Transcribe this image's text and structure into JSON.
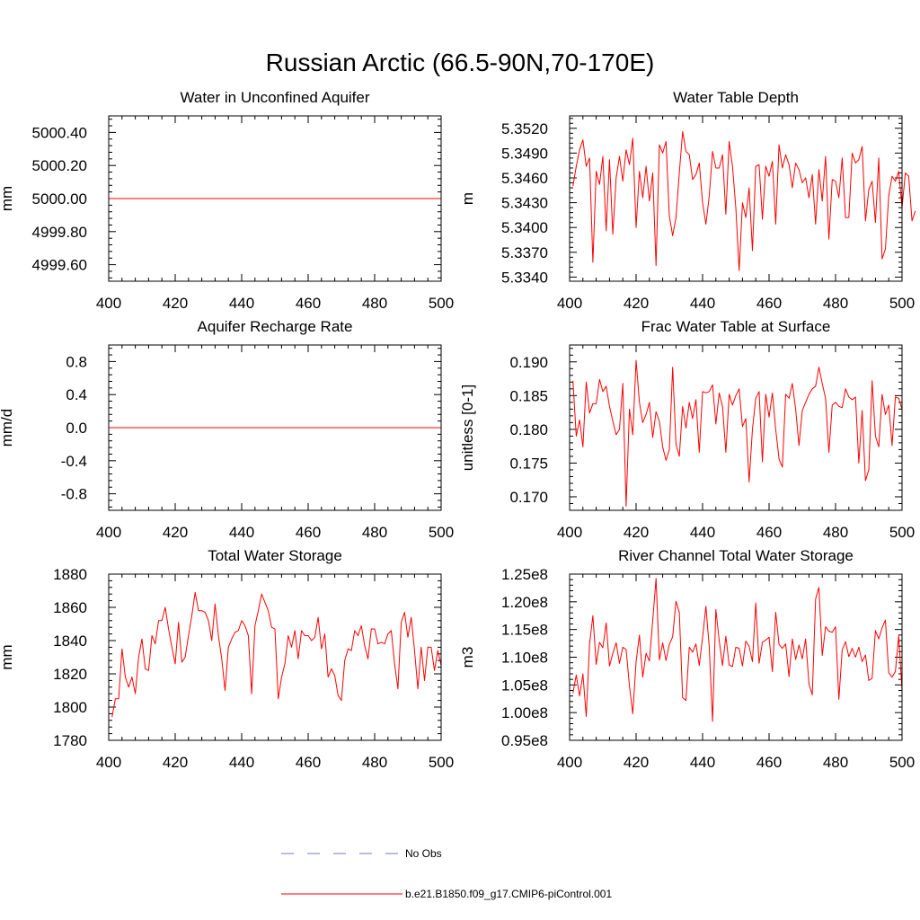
{
  "figure": {
    "title": "Russian Arctic (66.5-90N,70-170E)"
  },
  "legend": {
    "items": [
      {
        "label": "No Obs",
        "color": "#7777cc",
        "style": "dashed"
      },
      {
        "label": "b.e21.B1850.f09_g17.CMIP6-piControl.001",
        "color": "#ff0000",
        "style": "solid"
      }
    ]
  },
  "chart_data": [
    {
      "type": "line",
      "title": "Water in Unconfined Aquifer",
      "xlabel": "",
      "ylabel": "mm",
      "xlim": [
        400,
        500
      ],
      "ylim": [
        4999.5,
        5000.5
      ],
      "xticks": [
        400,
        420,
        440,
        460,
        480,
        500
      ],
      "xticklabels": [
        "400",
        "420",
        "440",
        "460",
        "480",
        "500"
      ],
      "yticks": [
        4999.6,
        4999.8,
        5000.0,
        5000.2,
        5000.4
      ],
      "yticklabels": [
        "4999.60",
        "4999.80",
        "5000.00",
        "5000.20",
        "5000.40"
      ],
      "x_start": 400,
      "x_step": 1,
      "series": [
        {
          "name": "b.e21.B1850.f09_g17.CMIP6-piControl.001",
          "color": "#ff0000",
          "values": [
            5000.0,
            5000.0
          ]
        }
      ],
      "series_x": [
        400,
        500
      ]
    },
    {
      "type": "line",
      "title": "Water Table Depth",
      "xlabel": "",
      "ylabel": "m",
      "xlim": [
        400,
        500
      ],
      "ylim": [
        5.3335,
        5.3535
      ],
      "xticks": [
        400,
        420,
        440,
        460,
        480,
        500
      ],
      "xticklabels": [
        "400",
        "420",
        "440",
        "460",
        "480",
        "500"
      ],
      "yticks": [
        5.334,
        5.337,
        5.34,
        5.343,
        5.346,
        5.349,
        5.352
      ],
      "yticklabels": [
        "5.3340",
        "5.3370",
        "5.3400",
        "5.3430",
        "5.3460",
        "5.3490",
        "5.3520"
      ],
      "x_start": 401,
      "x_step": 1,
      "series": [
        {
          "name": "b.e21.B1850.f09_g17.CMIP6-piControl.001",
          "color": "#ff0000",
          "values": [
            5.345,
            5.3474,
            5.3494,
            5.3506,
            5.3474,
            5.3484,
            5.3358,
            5.3468,
            5.3452,
            5.3486,
            5.3396,
            5.3482,
            5.3392,
            5.346,
            5.3486,
            5.3456,
            5.3494,
            5.3476,
            5.3508,
            5.34,
            5.3468,
            5.3436,
            5.3474,
            5.3432,
            5.3466,
            5.3354,
            5.35,
            5.349,
            5.3504,
            5.3414,
            5.339,
            5.3412,
            5.3466,
            5.3516,
            5.3492,
            5.3488,
            5.3458,
            5.3464,
            5.3478,
            5.343,
            5.3404,
            5.3438,
            5.3492,
            5.3472,
            5.3472,
            5.3488,
            5.3416,
            5.3504,
            5.3474,
            5.3424,
            5.3348,
            5.343,
            5.3412,
            5.3448,
            5.3372,
            5.3474,
            5.3476,
            5.341,
            5.3474,
            5.3462,
            5.348,
            5.3404,
            5.35,
            5.3472,
            5.3488,
            5.3476,
            5.3448,
            5.3478,
            5.347,
            5.3454,
            5.346,
            5.3436,
            5.3464,
            5.3404,
            5.347,
            5.3432,
            5.3486,
            5.3386,
            5.3458,
            5.3456,
            5.3436,
            5.3484,
            5.3412,
            5.3412,
            5.349,
            5.3478,
            5.3482,
            5.3498,
            5.3408,
            5.3446,
            5.3456,
            5.3406,
            5.3484,
            5.3362,
            5.3374,
            5.3438,
            5.3462,
            5.3456,
            5.3468,
            5.3424,
            5.3466,
            5.3462,
            5.3408,
            5.342
          ]
        }
      ]
    },
    {
      "type": "line",
      "title": "Aquifer Recharge Rate",
      "xlabel": "",
      "ylabel": "mm/d",
      "xlim": [
        400,
        500
      ],
      "ylim": [
        -1.0,
        1.0
      ],
      "xticks": [
        400,
        420,
        440,
        460,
        480,
        500
      ],
      "xticklabels": [
        "400",
        "420",
        "440",
        "460",
        "480",
        "500"
      ],
      "yticks": [
        -0.8,
        -0.4,
        0.0,
        0.4,
        0.8
      ],
      "yticklabels": [
        "-0.8",
        "-0.4",
        "0.0",
        "0.4",
        "0.8"
      ],
      "x_start": 400,
      "x_step": 1,
      "series": [
        {
          "name": "b.e21.B1850.f09_g17.CMIP6-piControl.001",
          "color": "#ff0000",
          "values": [
            0.0,
            0.0
          ]
        }
      ],
      "series_x": [
        400,
        500
      ]
    },
    {
      "type": "line",
      "title": "Frac Water Table at Surface",
      "xlabel": "",
      "ylabel": "unitless [0-1]",
      "xlim": [
        400,
        500
      ],
      "ylim": [
        0.168,
        0.1925
      ],
      "xticks": [
        400,
        420,
        440,
        460,
        480,
        500
      ],
      "xticklabels": [
        "400",
        "420",
        "440",
        "460",
        "480",
        "500"
      ],
      "yticks": [
        0.17,
        0.175,
        0.18,
        0.185,
        0.19
      ],
      "yticklabels": [
        "0.170",
        "0.175",
        "0.180",
        "0.185",
        "0.190"
      ],
      "x_start": 401,
      "x_step": 1,
      "series": [
        {
          "name": "b.e21.B1850.f09_g17.CMIP6-piControl.001",
          "color": "#ff0000",
          "values": [
            0.1872,
            0.179,
            0.1814,
            0.1774,
            0.187,
            0.1824,
            0.1838,
            0.1838,
            0.1874,
            0.1856,
            0.1864,
            0.1834,
            0.1812,
            0.1792,
            0.18,
            0.1868,
            0.1686,
            0.183,
            0.1792,
            0.1902,
            0.184,
            0.181,
            0.1822,
            0.184,
            0.1788,
            0.1826,
            0.1812,
            0.1774,
            0.1754,
            0.177,
            0.1892,
            0.1778,
            0.176,
            0.1834,
            0.1802,
            0.184,
            0.1816,
            0.1844,
            0.1766,
            0.1856,
            0.1854,
            0.1856,
            0.1866,
            0.1808,
            0.1854,
            0.1834,
            0.1766,
            0.1852,
            0.1836,
            0.185,
            0.186,
            0.1804,
            0.1816,
            0.1722,
            0.18,
            0.1846,
            0.1856,
            0.1752,
            0.1852,
            0.1818,
            0.1854,
            0.18,
            0.1756,
            0.1744,
            0.1852,
            0.1846,
            0.1868,
            0.183,
            0.1776,
            0.1828,
            0.184,
            0.1852,
            0.186,
            0.1864,
            0.1892,
            0.1868,
            0.1846,
            0.1766,
            0.1836,
            0.184,
            0.1834,
            0.1832,
            0.186,
            0.1848,
            0.1844,
            0.1848,
            0.175,
            0.1828,
            0.1724,
            0.174,
            0.1872,
            0.179,
            0.1774,
            0.1852,
            0.1822,
            0.1836,
            0.1776,
            0.1848,
            0.1846,
            0.183
          ]
        }
      ]
    },
    {
      "type": "line",
      "title": "Total Water Storage",
      "xlabel": "",
      "ylabel": "mm",
      "xlim": [
        400,
        500
      ],
      "ylim": [
        1780,
        1880
      ],
      "xticks": [
        400,
        420,
        440,
        460,
        480,
        500
      ],
      "xticklabels": [
        "400",
        "420",
        "440",
        "460",
        "480",
        "500"
      ],
      "yticks": [
        1780,
        1800,
        1820,
        1840,
        1860,
        1880
      ],
      "yticklabels": [
        "1780",
        "1800",
        "1820",
        "1840",
        "1860",
        "1880"
      ],
      "x_start": 401,
      "x_step": 1,
      "series": [
        {
          "name": "b.e21.B1850.f09_g17.CMIP6-piControl.001",
          "color": "#ff0000",
          "values": [
            1794,
            1805,
            1805,
            1835,
            1818,
            1812,
            1818,
            1808,
            1830,
            1841,
            1823,
            1822,
            1843,
            1838,
            1852,
            1852,
            1860,
            1847,
            1836,
            1826,
            1851,
            1827,
            1830,
            1843,
            1855,
            1869,
            1858,
            1858,
            1857,
            1852,
            1840,
            1862,
            1843,
            1829,
            1810,
            1836,
            1841,
            1845,
            1846,
            1852,
            1849,
            1843,
            1808,
            1849,
            1858,
            1868,
            1863,
            1858,
            1848,
            1847,
            1805,
            1818,
            1826,
            1843,
            1836,
            1846,
            1829,
            1846,
            1843,
            1843,
            1840,
            1842,
            1854,
            1835,
            1844,
            1818,
            1823,
            1819,
            1807,
            1804,
            1828,
            1835,
            1834,
            1846,
            1843,
            1849,
            1837,
            1829,
            1847,
            1847,
            1838,
            1839,
            1838,
            1844,
            1846,
            1826,
            1811,
            1851,
            1857,
            1842,
            1854,
            1834,
            1811,
            1836,
            1816,
            1836,
            1836,
            1822,
            1834,
            1825
          ]
        }
      ]
    },
    {
      "type": "line",
      "title": "River Channel Total Water Storage",
      "xlabel": "",
      "ylabel": "m3",
      "xlim": [
        400,
        500
      ],
      "ylim": [
        95000000.0,
        125000000.0
      ],
      "xticks": [
        400,
        420,
        440,
        460,
        480,
        500
      ],
      "xticklabels": [
        "400",
        "420",
        "440",
        "460",
        "480",
        "500"
      ],
      "yticks": [
        95000000.0,
        100000000.0,
        105000000.0,
        110000000.0,
        115000000.0,
        120000000.0,
        125000000.0
      ],
      "yticklabels": [
        "0.95e8",
        "1.00e8",
        "1.05e8",
        "1.10e8",
        "1.15e8",
        "1.20e8",
        "1.25e8"
      ],
      "x_start": 401,
      "x_step": 1,
      "series": [
        {
          "name": "b.e21.B1850.f09_g17.CMIP6-piControl.001",
          "color": "#ff0000",
          "values": [
            103500000.0,
            106800000.0,
            103000000.0,
            107000000.0,
            99300000.0,
            112400000.0,
            117500000.0,
            108700000.0,
            112700000.0,
            111700000.0,
            116200000.0,
            108400000.0,
            110700000.0,
            112600000.0,
            108900000.0,
            111800000.0,
            111400000.0,
            104800000.0,
            99800000.0,
            109200000.0,
            114000000.0,
            106400000.0,
            110700000.0,
            109300000.0,
            116600000.0,
            124200000.0,
            109500000.0,
            112600000.0,
            109400000.0,
            112300000.0,
            113700000.0,
            120100000.0,
            118100000.0,
            102700000.0,
            102200000.0,
            111800000.0,
            110900000.0,
            112400000.0,
            108500000.0,
            113600000.0,
            119200000.0,
            111900000.0,
            98400000.0,
            118600000.0,
            113000000.0,
            108500000.0,
            113800000.0,
            108600000.0,
            108300000.0,
            111800000.0,
            111600000.0,
            108400000.0,
            112900000.0,
            112000000.0,
            109200000.0,
            119800000.0,
            108900000.0,
            112700000.0,
            113100000.0,
            113600000.0,
            107400000.0,
            118100000.0,
            112300000.0,
            111600000.0,
            112400000.0,
            106500000.0,
            113300000.0,
            109600000.0,
            112200000.0,
            109700000.0,
            113300000.0,
            105200000.0,
            103200000.0,
            120500000.0,
            122600000.0,
            110300000.0,
            115500000.0,
            114700000.0,
            114500000.0,
            115500000.0,
            102400000.0,
            111300000.0,
            112800000.0,
            110100000.0,
            111600000.0,
            110000000.0,
            111800000.0,
            109200000.0,
            110400000.0,
            105800000.0,
            106200000.0,
            114800000.0,
            113300000.0,
            115300000.0,
            116700000.0,
            107200000.0,
            106400000.0,
            107400000.0,
            113900000.0,
            103900000.0
          ]
        }
      ]
    }
  ]
}
